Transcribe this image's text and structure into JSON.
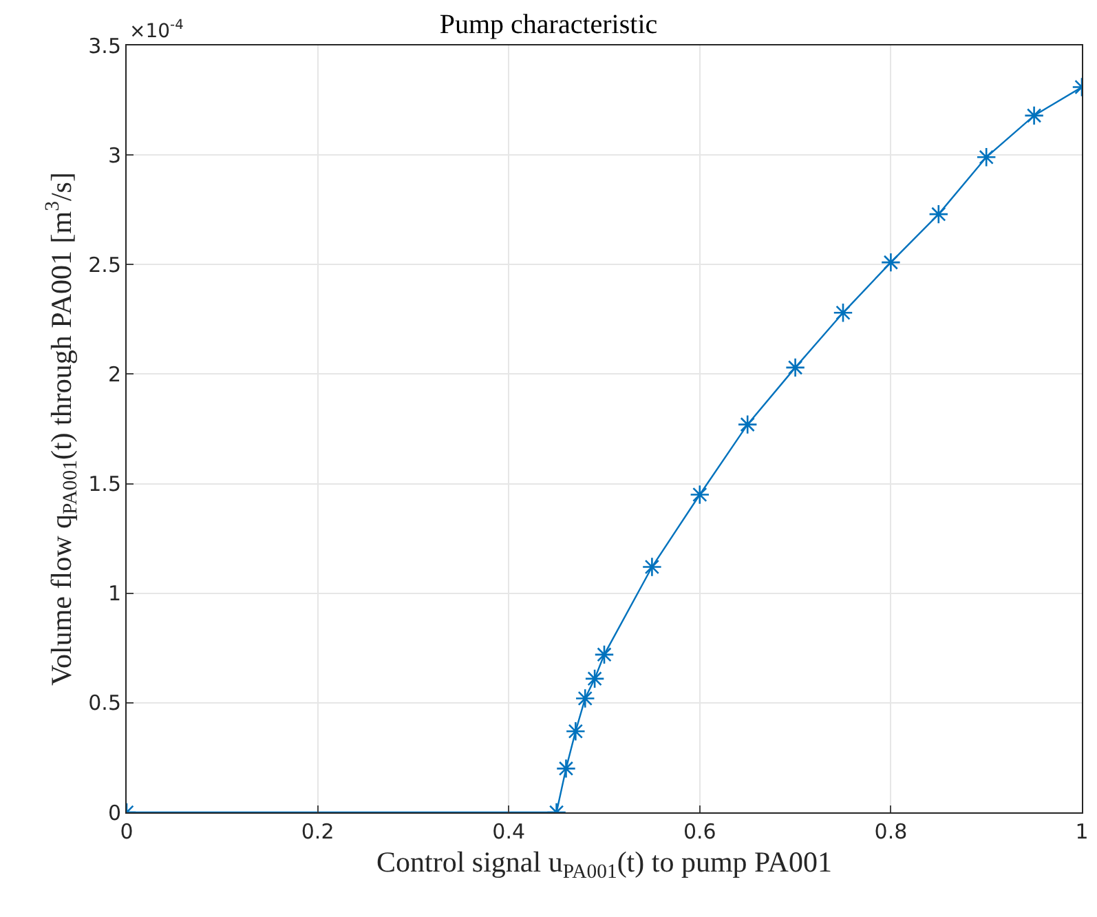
{
  "chart_data": {
    "type": "line",
    "title": "Pump characteristic",
    "xlabel": "Control signal u$_{PA001}$(t) to pump PA001",
    "ylabel": "Volume flow q$_{PA001}$(t) through PA001 [m$^{3}$/s]",
    "annotations": [
      "×10$^{-4}$"
    ],
    "x": [
      0,
      0.45,
      0.46,
      0.47,
      0.48,
      0.49,
      0.5,
      0.55,
      0.6,
      0.65,
      0.7,
      0.75,
      0.8,
      0.85,
      0.9,
      0.95,
      1.0
    ],
    "series": [
      {
        "color": "#0072bd",
        "values": [
          0,
          0,
          0.2,
          0.37,
          0.52,
          0.61,
          0.72,
          1.12,
          1.45,
          1.77,
          2.03,
          2.28,
          2.51,
          2.73,
          2.99,
          3.18,
          3.31
        ]
      }
    ],
    "xlim": [
      0,
      1
    ],
    "xticks": [
      0,
      0.2,
      0.4,
      0.6,
      0.8,
      1
    ],
    "ylim": [
      0,
      3.5
    ],
    "yticks": [
      0,
      0.5,
      1,
      1.5,
      2,
      2.5,
      3,
      3.5
    ],
    "grid": true,
    "marker": "cross",
    "line_style": "solid"
  }
}
